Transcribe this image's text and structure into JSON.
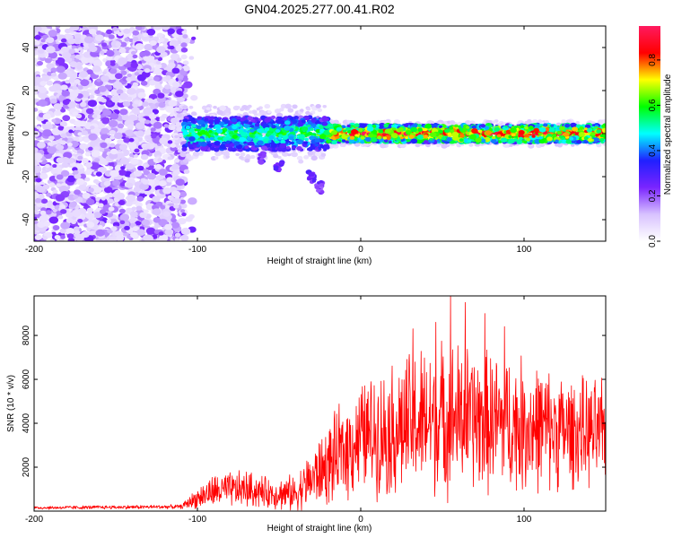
{
  "title": "GN04.2025.277.00.41.R02",
  "chart_data": [
    {
      "type": "heatmap",
      "name": "spectrogram",
      "xlabel": "Height of straight line (km)",
      "ylabel": "Frequency (Hz)",
      "xlim": [
        -200,
        150
      ],
      "ylim": [
        -50,
        50
      ],
      "xticks": [
        -200,
        -100,
        0,
        100
      ],
      "yticks": [
        -40,
        -20,
        0,
        20,
        40
      ],
      "xtick_labels": [
        "-200",
        "-100",
        "0",
        "100"
      ],
      "ytick_labels": [
        "-40",
        "-20",
        "0",
        "20",
        "40"
      ],
      "features": {
        "noise_region_km": [
          -200,
          -107
        ],
        "signal_band_center_hz": 0,
        "signal_band_halfwidth_hz": 4,
        "strong_signal_start_km": -20,
        "descending_features": [
          {
            "x": -60,
            "y": -11
          },
          {
            "x": -50,
            "y": -15
          },
          {
            "x": -30,
            "y": -20
          },
          {
            "x": -25,
            "y": -25
          }
        ]
      },
      "colorbar": {
        "label": "Normalized spectral amplitude",
        "range": [
          0,
          0.95
        ],
        "ticks": [
          0,
          0.2,
          0.4,
          0.6,
          0.8
        ],
        "tick_labels": [
          "0.0",
          "0.2",
          "0.4",
          "0.6",
          "0.8"
        ],
        "colors": [
          "#ffffff",
          "#d8c2ff",
          "#7a24ff",
          "#2020ff",
          "#00ffff",
          "#00ff00",
          "#ffff00",
          "#ff0000",
          "#ff1a60"
        ]
      }
    },
    {
      "type": "line",
      "name": "snr",
      "xlabel": "Height of straight line (km)",
      "ylabel": "SNR (10 * v/v)",
      "xlim": [
        -200,
        150
      ],
      "ylim": [
        0,
        9800
      ],
      "xticks": [
        -200,
        -100,
        0,
        100
      ],
      "yticks": [
        2000,
        4000,
        6000,
        8000
      ],
      "xtick_labels": [
        "-200",
        "-100",
        "0",
        "100"
      ],
      "ytick_labels": [
        "2000",
        "4000",
        "6000",
        "8000"
      ],
      "color": "#ff0000",
      "series_anchors": [
        {
          "x": -200,
          "base": 150,
          "amp": 80
        },
        {
          "x": -110,
          "base": 200,
          "amp": 100
        },
        {
          "x": -100,
          "base": 600,
          "amp": 500
        },
        {
          "x": -90,
          "base": 900,
          "amp": 800
        },
        {
          "x": -70,
          "base": 1000,
          "amp": 900
        },
        {
          "x": -55,
          "base": 800,
          "amp": 700
        },
        {
          "x": -40,
          "base": 800,
          "amp": 900
        },
        {
          "x": -28,
          "base": 1600,
          "amp": 1500
        },
        {
          "x": -15,
          "base": 2400,
          "amp": 2200
        },
        {
          "x": 0,
          "base": 3400,
          "amp": 2600
        },
        {
          "x": 20,
          "base": 3700,
          "amp": 3200
        },
        {
          "x": 35,
          "base": 4000,
          "amp": 3600
        },
        {
          "x": 55,
          "base": 4300,
          "amp": 3600
        },
        {
          "x": 75,
          "base": 4100,
          "amp": 3400
        },
        {
          "x": 100,
          "base": 3900,
          "amp": 3200
        },
        {
          "x": 130,
          "base": 3600,
          "amp": 2600
        },
        {
          "x": 150,
          "base": 3500,
          "amp": 2500
        }
      ],
      "peaks": [
        {
          "x": 55,
          "y": 9800
        },
        {
          "x": 64,
          "y": 9500
        },
        {
          "x": 32,
          "y": 8300
        },
        {
          "x": 46,
          "y": 8600
        },
        {
          "x": 76,
          "y": 9000
        },
        {
          "x": 88,
          "y": 8400
        }
      ]
    }
  ]
}
